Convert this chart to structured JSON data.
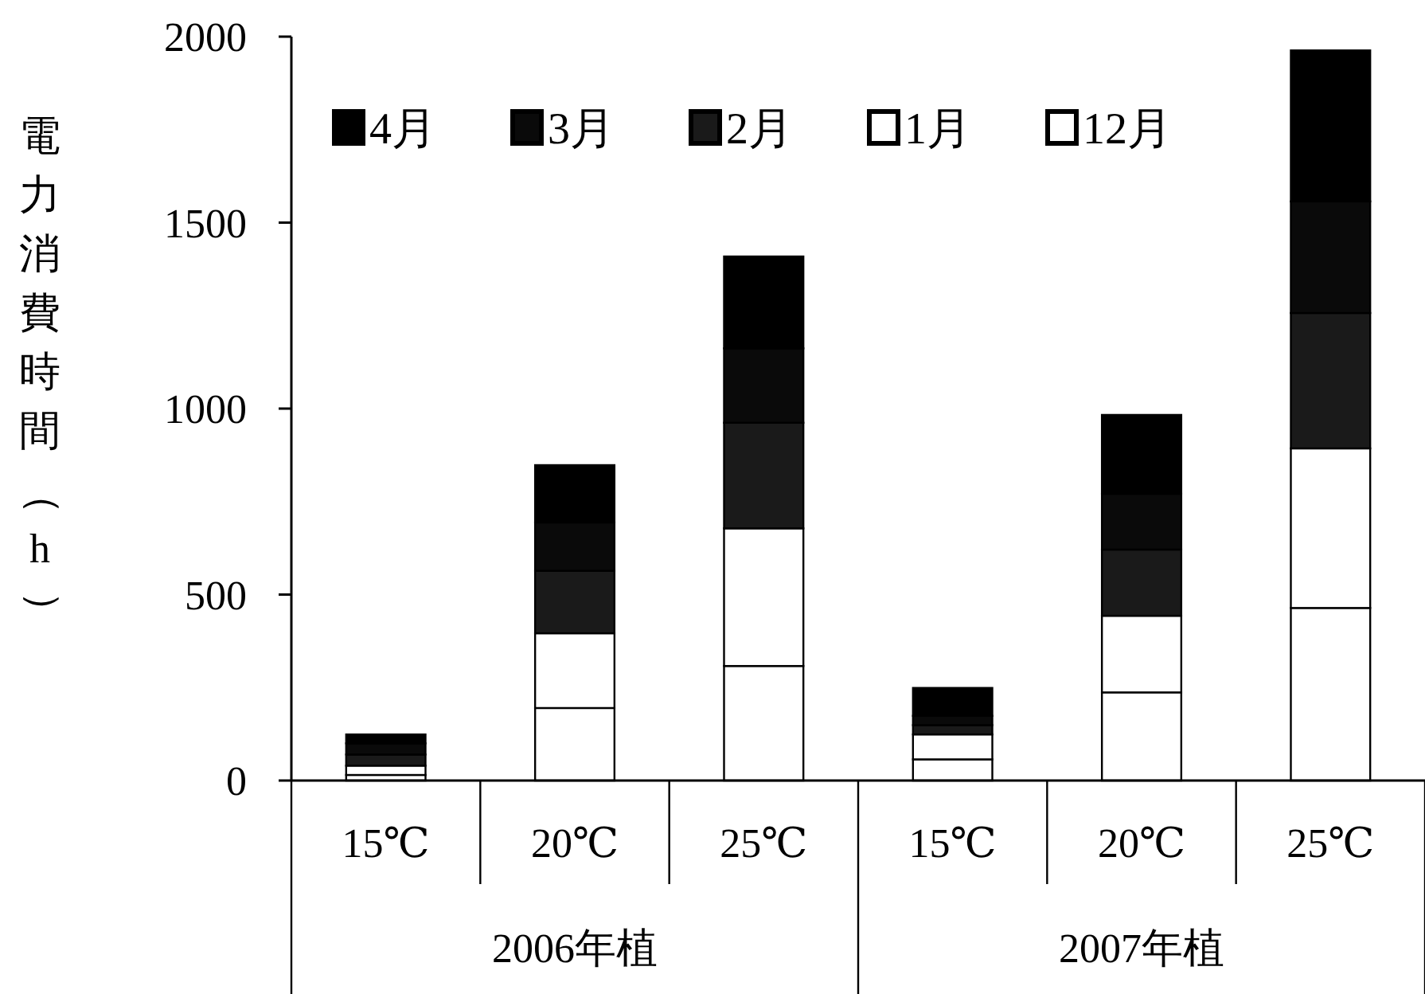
{
  "chart_data": {
    "type": "bar",
    "stacked": true,
    "ylabel": "電力消費時間（h）",
    "categories": [
      "15℃",
      "20℃",
      "25℃",
      "15℃",
      "20℃",
      "25℃"
    ],
    "annotations": [
      "2006年植",
      "2007年植"
    ],
    "ylim": [
      0,
      2000
    ],
    "yticks": [
      0,
      500,
      1000,
      1500,
      2000
    ],
    "grid": false,
    "legend": "top",
    "series": [
      {
        "name": "12月",
        "color": "#ffffff",
        "values": [
          15,
          195,
          308,
          57,
          237,
          464
        ]
      },
      {
        "name": "1月",
        "color": "#ffffff",
        "values": [
          25,
          201,
          370,
          67,
          206,
          429
        ]
      },
      {
        "name": "2月",
        "color": "#1a1a1a",
        "values": [
          30,
          168,
          284,
          25,
          178,
          364
        ]
      },
      {
        "name": "3月",
        "color": "#0a0a0a",
        "values": [
          30,
          130,
          200,
          25,
          150,
          300
        ]
      },
      {
        "name": "4月",
        "color": "#000000",
        "values": [
          24,
          154,
          247,
          75,
          212,
          406
        ]
      }
    ]
  }
}
